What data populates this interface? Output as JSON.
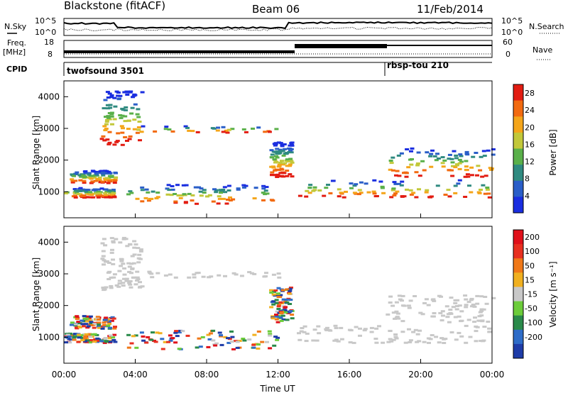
{
  "header": {
    "station": "Blackstone (fitACF)",
    "beam": "Beam 06",
    "date": "11/Feb/2014"
  },
  "summary": {
    "left_labels": {
      "nsky": "N.Sky",
      "freq_top": "Freq.",
      "freq_unit": "[MHz]",
      "cpid": "CPID"
    },
    "right_labels": {
      "nsearch": "N.Search",
      "nave": "Nave"
    },
    "nsky_ticks": [
      "10^5",
      "10^0"
    ],
    "nsearch_ticks": [
      "10^5",
      "10^0"
    ],
    "freq_ticks": [
      "18",
      "8"
    ],
    "nave_ticks": [
      "60",
      "0"
    ],
    "cpid_programs": [
      {
        "label": "twofsound 3501",
        "start_hour": 0
      },
      {
        "label": "rbsp-tou 210",
        "start_hour": 18
      }
    ]
  },
  "chart_data": [
    {
      "type": "heatmap",
      "panel": "power",
      "ylabel": "Slant Range [km]",
      "y_ticks": [
        1000,
        2000,
        3000,
        4000
      ],
      "ylim": [
        180,
        4500
      ],
      "x_ticks": [
        "00:00",
        "04:00",
        "08:00",
        "12:00",
        "16:00",
        "20:00",
        "00:00"
      ],
      "xlim_hours": [
        0,
        24
      ],
      "colorbar": {
        "label": "Power [dB]",
        "ticks": [
          4,
          8,
          12,
          16,
          20,
          24,
          28
        ],
        "range": [
          0,
          30
        ],
        "colors": [
          "#1a2ee0",
          "#2a5ec8",
          "#2f8a80",
          "#5ab04a",
          "#c2c83a",
          "#f4a51a",
          "#f26a10",
          "#e21c12"
        ]
      }
    },
    {
      "type": "heatmap",
      "panel": "velocity",
      "ylabel": "Slant Range [km]",
      "y_ticks": [
        1000,
        2000,
        3000,
        4000
      ],
      "ylim": [
        180,
        4500
      ],
      "x_ticks": [
        "00:00",
        "04:00",
        "08:00",
        "12:00",
        "16:00",
        "20:00",
        "00:00"
      ],
      "xlim_hours": [
        0,
        24
      ],
      "xlabel": "Time UT",
      "colorbar": {
        "label": "Velocity [m s⁻¹]",
        "ticks": [
          "200",
          "100",
          "50",
          "15",
          "-15",
          "-50",
          "-100",
          "-200"
        ],
        "colors": [
          "#1e3ca8",
          "#2e6cc8",
          "#2a8a4a",
          "#6ccc3a",
          "#c8c8c8",
          "#f0b020",
          "#f07818",
          "#e83020",
          "#e0101a"
        ]
      }
    }
  ]
}
